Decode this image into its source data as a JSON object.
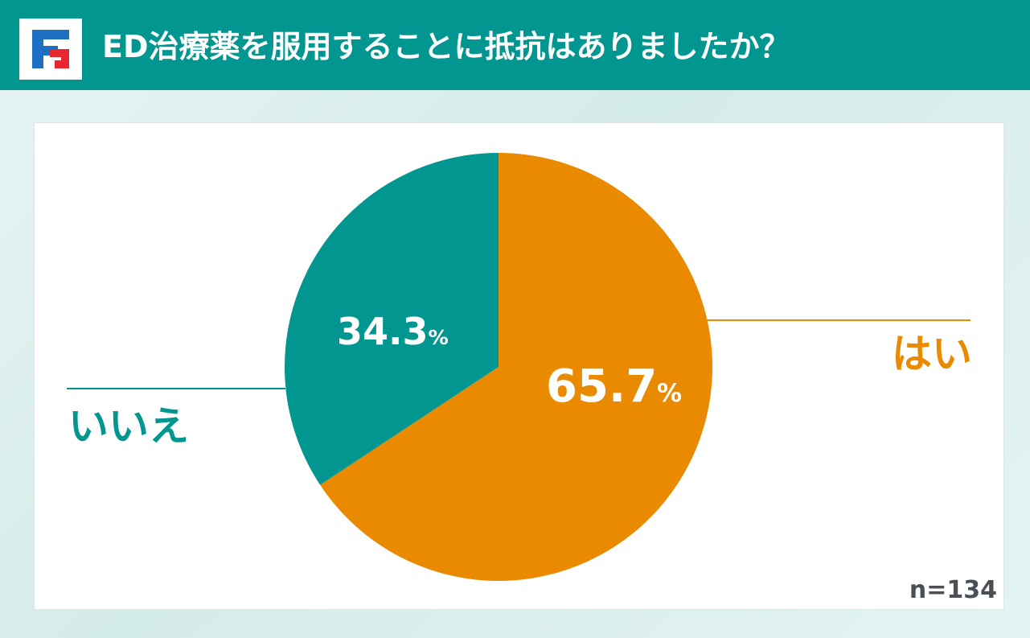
{
  "header": {
    "title": "ED治療薬を服用することに抵抗はありましたか？",
    "logo_icon": "brand-logo-icon"
  },
  "chart_data": {
    "type": "pie",
    "title": "ED治療薬を服用することに抵抗はありましたか？",
    "n_label": "n=134",
    "percent_symbol": "%",
    "slices": [
      {
        "label": "はい",
        "value": 65.7,
        "value_text": "65.7",
        "color": "#e98a00"
      },
      {
        "label": "いいえ",
        "value": 34.3,
        "value_text": "34.3",
        "color": "#029690"
      }
    ]
  }
}
